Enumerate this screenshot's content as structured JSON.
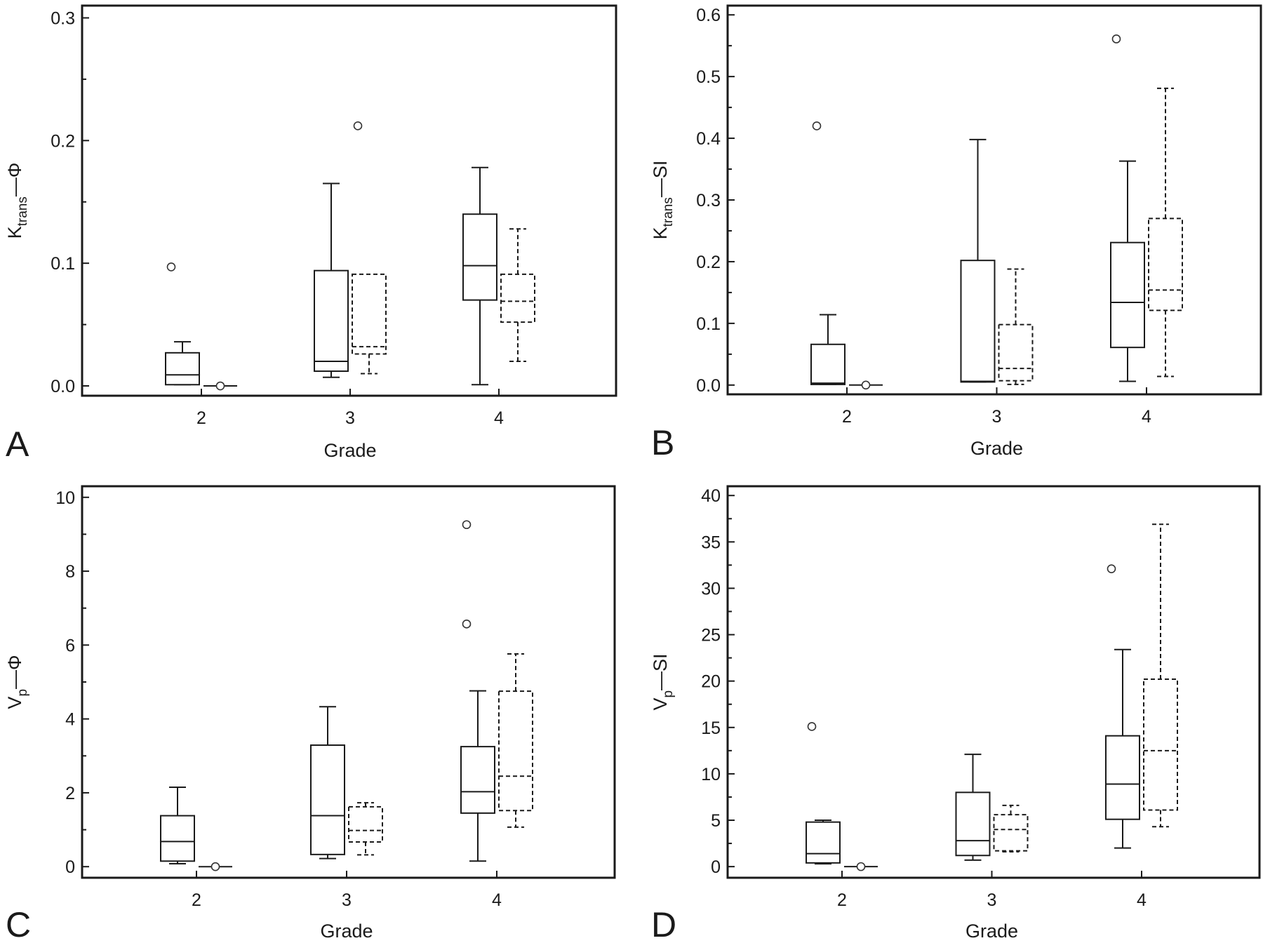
{
  "chart_data": [
    {
      "type": "box",
      "panel": "A",
      "xlabel": "Grade",
      "ylabel": {
        "main": "K",
        "sub": "trans",
        "suffix": "—Φ"
      },
      "categories": [
        "2",
        "3",
        "4"
      ],
      "ylim": [
        -0.008,
        0.31
      ],
      "yticks": [
        0.0,
        0.1,
        0.2,
        0.3
      ],
      "ytick_labels": [
        "0.0",
        "0.1",
        "0.2",
        "0.3"
      ],
      "yminor_step": 0.05,
      "series": [
        {
          "name": "solid",
          "style": "solid",
          "boxes": [
            {
              "category": "2",
              "whisker_low": 0.001,
              "q1": 0.001,
              "median": 0.009,
              "q3": 0.027,
              "whisker_high": 0.036,
              "outliers": [
                0.097
              ]
            },
            {
              "category": "3",
              "whisker_low": 0.007,
              "q1": 0.012,
              "median": 0.02,
              "q3": 0.094,
              "whisker_high": 0.165,
              "outliers": []
            },
            {
              "category": "4",
              "whisker_low": 0.001,
              "q1": 0.07,
              "median": 0.098,
              "q3": 0.14,
              "whisker_high": 0.178,
              "outliers": []
            }
          ]
        },
        {
          "name": "dashed",
          "style": "dashed",
          "boxes": [
            {
              "category": "2",
              "whisker_low": 0.0,
              "q1": 0.0,
              "median": 0.0,
              "q3": 0.0,
              "whisker_high": 0.0,
              "outliers": [
                0.0
              ]
            },
            {
              "category": "3",
              "whisker_low": 0.01,
              "q1": 0.026,
              "median": 0.032,
              "q3": 0.091,
              "whisker_high": 0.091,
              "inner_whisker": 0.05,
              "outliers": [
                0.212
              ]
            },
            {
              "category": "4",
              "whisker_low": 0.02,
              "q1": 0.052,
              "median": 0.069,
              "q3": 0.091,
              "whisker_high": 0.128,
              "outliers": []
            }
          ]
        }
      ]
    },
    {
      "type": "box",
      "panel": "B",
      "xlabel": "Grade",
      "ylabel": {
        "main": "K",
        "sub": "trans",
        "suffix": "—SI"
      },
      "categories": [
        "2",
        "3",
        "4"
      ],
      "ylim": [
        -0.015,
        0.615
      ],
      "yticks": [
        0.0,
        0.1,
        0.2,
        0.3,
        0.4,
        0.5,
        0.6
      ],
      "ytick_labels": [
        "0.0",
        "0.1",
        "0.2",
        "0.3",
        "0.4",
        "0.5",
        "0.6"
      ],
      "yminor_step": 0.05,
      "series": [
        {
          "name": "solid",
          "style": "solid",
          "boxes": [
            {
              "category": "2",
              "whisker_low": 0.001,
              "q1": 0.001,
              "median": 0.003,
              "q3": 0.066,
              "whisker_high": 0.114,
              "outliers": [
                0.42
              ]
            },
            {
              "category": "3",
              "whisker_low": 0.005,
              "q1": 0.005,
              "median": 0.006,
              "q3": 0.202,
              "whisker_high": 0.398,
              "outliers": []
            },
            {
              "category": "4",
              "whisker_low": 0.006,
              "q1": 0.061,
              "median": 0.134,
              "q3": 0.231,
              "whisker_high": 0.363,
              "outliers": [
                0.561
              ]
            }
          ]
        },
        {
          "name": "dashed",
          "style": "dashed",
          "boxes": [
            {
              "category": "2",
              "whisker_low": 0.0,
              "q1": 0.0,
              "median": 0.0,
              "q3": 0.0,
              "whisker_high": 0.0,
              "outliers": [
                0.0
              ]
            },
            {
              "category": "3",
              "whisker_low": 0.001,
              "q1": 0.007,
              "median": 0.027,
              "q3": 0.098,
              "whisker_high": 0.188,
              "outliers": []
            },
            {
              "category": "4",
              "whisker_low": 0.014,
              "q1": 0.121,
              "median": 0.154,
              "q3": 0.27,
              "whisker_high": 0.481,
              "outliers": []
            }
          ]
        }
      ]
    },
    {
      "type": "box",
      "panel": "C",
      "xlabel": "Grade",
      "ylabel": {
        "main": "V",
        "sub": "p",
        "suffix": "—Φ"
      },
      "categories": [
        "2",
        "3",
        "4"
      ],
      "ylim": [
        -0.3,
        10.3
      ],
      "yticks": [
        0,
        2,
        4,
        6,
        8,
        10
      ],
      "ytick_labels": [
        "0",
        "2",
        "4",
        "6",
        "8",
        "10"
      ],
      "yminor_step": 1,
      "series": [
        {
          "name": "solid",
          "style": "solid",
          "boxes": [
            {
              "category": "2",
              "whisker_low": 0.08,
              "q1": 0.15,
              "median": 0.68,
              "q3": 1.38,
              "whisker_high": 2.15,
              "outliers": []
            },
            {
              "category": "3",
              "whisker_low": 0.22,
              "q1": 0.33,
              "median": 1.38,
              "q3": 3.29,
              "whisker_high": 4.33,
              "outliers": []
            },
            {
              "category": "4",
              "whisker_low": 0.15,
              "q1": 1.45,
              "median": 2.03,
              "q3": 3.25,
              "whisker_high": 4.76,
              "outliers": [
                6.57,
                9.26
              ]
            }
          ]
        },
        {
          "name": "dashed",
          "style": "dashed",
          "boxes": [
            {
              "category": "2",
              "whisker_low": 0.0,
              "q1": 0.0,
              "median": 0.0,
              "q3": 0.0,
              "whisker_high": 0.0,
              "outliers": [
                0.0
              ]
            },
            {
              "category": "3",
              "whisker_low": 0.32,
              "q1": 0.67,
              "median": 0.98,
              "q3": 1.62,
              "whisker_high": 1.73,
              "outliers": []
            },
            {
              "category": "4",
              "whisker_low": 1.07,
              "q1": 1.52,
              "median": 2.45,
              "q3": 4.75,
              "whisker_high": 5.76,
              "outliers": []
            }
          ]
        }
      ]
    },
    {
      "type": "box",
      "panel": "D",
      "xlabel": "Grade",
      "ylabel": {
        "main": "V",
        "sub": "p",
        "suffix": "—SI"
      },
      "categories": [
        "2",
        "3",
        "4"
      ],
      "ylim": [
        -1.2,
        41.0
      ],
      "yticks": [
        0,
        5,
        10,
        15,
        20,
        25,
        30,
        35,
        40
      ],
      "ytick_labels": [
        "0",
        "5",
        "10",
        "15",
        "20",
        "25",
        "30",
        "35",
        "40"
      ],
      "yminor_step": 2.5,
      "series": [
        {
          "name": "solid",
          "style": "solid",
          "boxes": [
            {
              "category": "2",
              "whisker_low": 0.3,
              "q1": 0.4,
              "median": 1.4,
              "q3": 4.8,
              "whisker_high": 5.0,
              "outliers": [
                15.1
              ]
            },
            {
              "category": "3",
              "whisker_low": 0.7,
              "q1": 1.2,
              "median": 2.8,
              "q3": 8.0,
              "whisker_high": 12.1,
              "outliers": []
            },
            {
              "category": "4",
              "whisker_low": 2.0,
              "q1": 5.1,
              "median": 8.9,
              "q3": 14.1,
              "whisker_high": 23.4,
              "outliers": [
                32.1
              ]
            }
          ]
        },
        {
          "name": "dashed",
          "style": "dashed",
          "boxes": [
            {
              "category": "2",
              "whisker_low": 0.0,
              "q1": 0.0,
              "median": 0.0,
              "q3": 0.0,
              "whisker_high": 0.0,
              "outliers": [
                0.0
              ]
            },
            {
              "category": "3",
              "whisker_low": 1.6,
              "q1": 1.7,
              "median": 4.0,
              "q3": 5.6,
              "whisker_high": 6.6,
              "outliers": []
            },
            {
              "category": "4",
              "whisker_low": 4.3,
              "q1": 6.1,
              "median": 12.5,
              "q3": 20.2,
              "whisker_high": 36.9,
              "outliers": []
            }
          ]
        }
      ]
    }
  ]
}
